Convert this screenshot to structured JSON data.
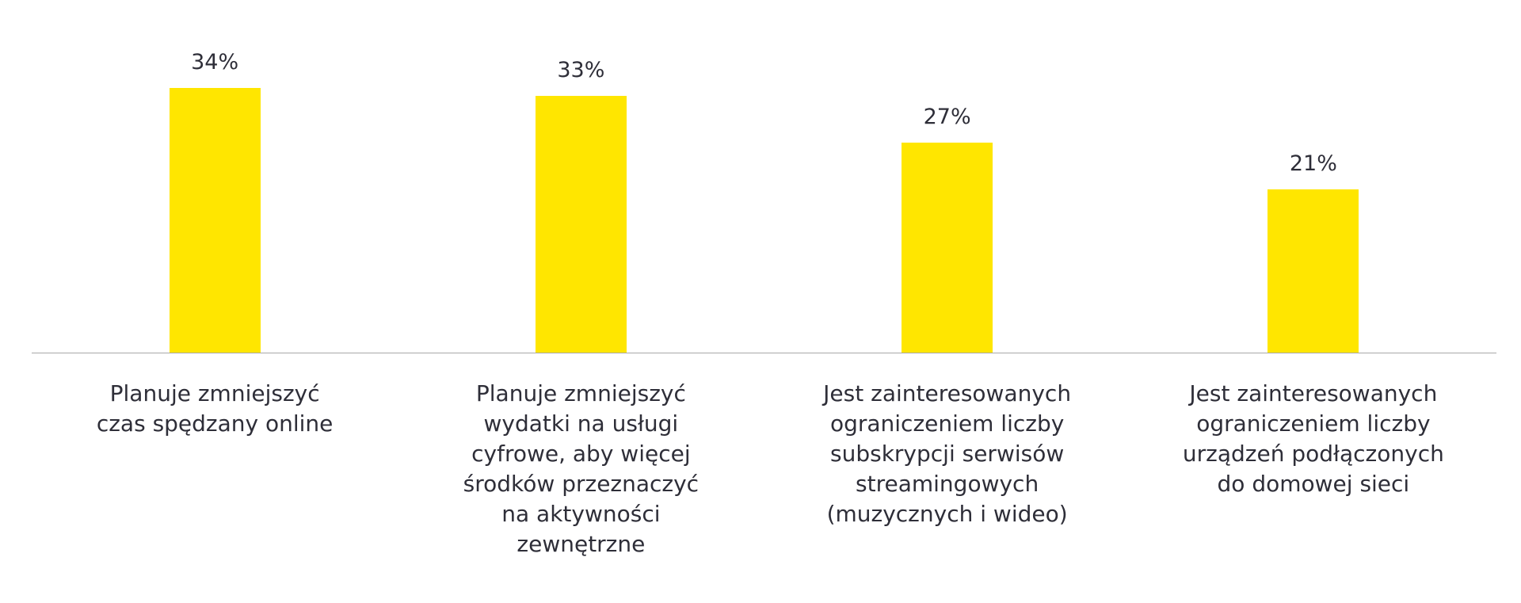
{
  "chart_data": {
    "type": "bar",
    "categories": [
      "Planuje zmniejszyć\nczas spędzany online",
      "Planuje zmniejszyć\nwydatki na usługi\ncyfrowe, aby więcej\nśrodków przeznaczyć\nna aktywności\nzewnętrzne",
      "Jest zainteresowanych\nograniczeniem liczby\nsubskrypcji serwisów\nstreamingowych\n(muzycznych i wideo)",
      "Jest zainteresowanych\nograniczeniem liczby\nurządzeń podłączonych\ndo domowej sieci"
    ],
    "values": [
      34,
      33,
      27,
      21
    ],
    "value_labels": [
      "34%",
      "33%",
      "27%",
      "21%"
    ],
    "color": "#ffe600"
  }
}
